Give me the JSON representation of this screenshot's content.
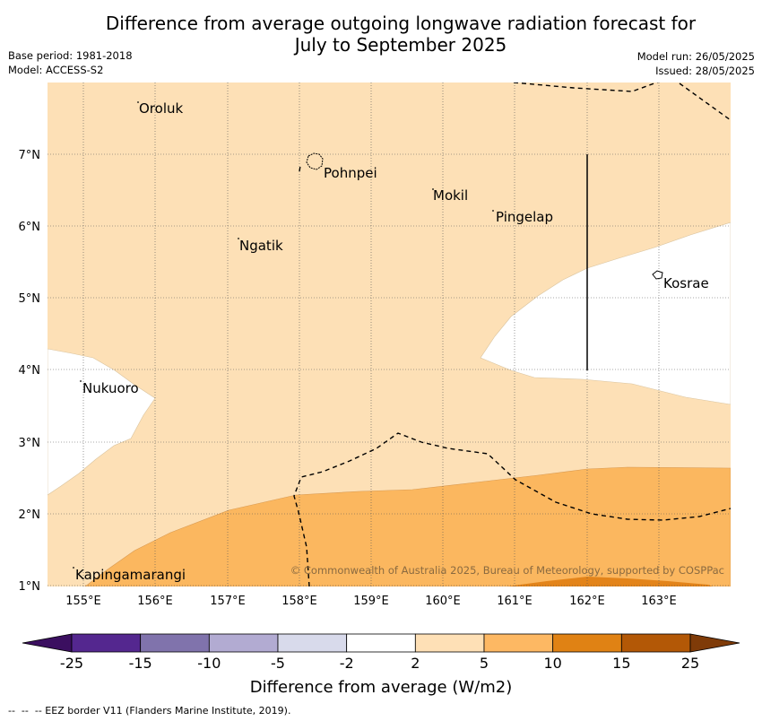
{
  "header": {
    "title_line1": "Difference from average outgoing longwave radiation forecast for",
    "title_line2": "July to September 2025",
    "base_period": "Base period: 1981-2018",
    "model": "Model: ACCESS-S2",
    "model_run": "Model run: 26/05/2025",
    "issued": "Issued: 28/05/2025"
  },
  "map": {
    "x_ticks": [
      "155°E",
      "156°E",
      "157°E",
      "158°E",
      "159°E",
      "160°E",
      "161°E",
      "162°E",
      "163°E"
    ],
    "y_ticks": [
      "7°N",
      "6°N",
      "5°N",
      "4°N",
      "3°N",
      "2°N",
      "1°N"
    ],
    "places": [
      {
        "name": "Oroluk"
      },
      {
        "name": "Pohnpei"
      },
      {
        "name": "Mokil"
      },
      {
        "name": "Pingelap"
      },
      {
        "name": "Ngatik"
      },
      {
        "name": "Kosrae"
      },
      {
        "name": "Nukuoro"
      },
      {
        "name": "Kapingamarangi"
      }
    ],
    "copyright": "© Commonwealth of Australia 2025, Bureau of Meteorology, supported by COSPPac",
    "fill_colors": {
      "2_to_5": "#fde0b6",
      "5_to_10": "#fbb75f",
      "10_to_15": "#e3841a"
    }
  },
  "colorbar": {
    "labels": [
      "-25",
      "-15",
      "-10",
      "-5",
      "-2",
      "2",
      "5",
      "10",
      "15",
      "25"
    ],
    "colors": [
      "#3b0f60",
      "#54278f",
      "#8073ac",
      "#b2abd2",
      "#d8daeb",
      "#ffffff",
      "#fee0b6",
      "#fdb863",
      "#e08214",
      "#b35806",
      "#7f3b08"
    ],
    "title": "Difference from average (W/m2)"
  },
  "footer": {
    "legend_text": "--  --  -- EEZ border V11 (Flanders Marine Institute, 2019)."
  }
}
